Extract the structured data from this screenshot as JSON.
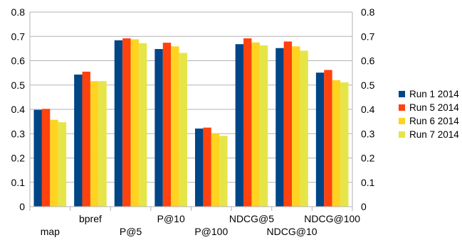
{
  "chart_data": {
    "type": "bar",
    "categories": [
      "map",
      "bpref",
      "P@5",
      "P@10",
      "P@100",
      "NDCG@5",
      "NDCG@10",
      "NDCG@100"
    ],
    "series": [
      {
        "name": "Run 1 2014",
        "color": "#004586",
        "values": [
          0.398,
          0.543,
          0.684,
          0.648,
          0.321,
          0.668,
          0.652,
          0.551
        ]
      },
      {
        "name": "Run 5 2014",
        "color": "#ff420e",
        "values": [
          0.402,
          0.555,
          0.692,
          0.674,
          0.325,
          0.692,
          0.679,
          0.562
        ]
      },
      {
        "name": "Run 6 2014",
        "color": "#ffd320",
        "values": [
          0.357,
          0.516,
          0.688,
          0.659,
          0.302,
          0.675,
          0.659,
          0.52
        ]
      },
      {
        "name": "Run 7 2014",
        "color": "#e6e548",
        "values": [
          0.347,
          0.516,
          0.672,
          0.632,
          0.291,
          0.663,
          0.641,
          0.511
        ]
      }
    ],
    "y_ticks": [
      "0",
      "0.1",
      "0.2",
      "0.3",
      "0.4",
      "0.5",
      "0.6",
      "0.7",
      "0.8"
    ],
    "ylim": [
      0,
      0.8
    ],
    "grid": true,
    "secondary_y_axis": true,
    "legend_position": "right"
  }
}
